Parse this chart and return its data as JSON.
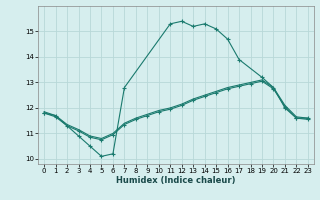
{
  "xlabel": "Humidex (Indice chaleur)",
  "bg_color": "#d6eeee",
  "line_color": "#1a7a6e",
  "grid_color": "#b8d8d8",
  "xlim": [
    -0.5,
    23.5
  ],
  "ylim": [
    9.8,
    16.0
  ],
  "yticks": [
    10,
    11,
    12,
    13,
    14,
    15
  ],
  "xticks": [
    0,
    1,
    2,
    3,
    4,
    5,
    6,
    7,
    8,
    9,
    10,
    11,
    12,
    13,
    14,
    15,
    16,
    17,
    18,
    19,
    20,
    21,
    22,
    23
  ],
  "peak_x": [
    0,
    1,
    3,
    4,
    5,
    6,
    7,
    11,
    12,
    13,
    14,
    15,
    16,
    17,
    19,
    20,
    21,
    22,
    23
  ],
  "peak_y": [
    11.8,
    11.7,
    10.9,
    10.5,
    10.1,
    10.2,
    12.8,
    15.3,
    15.4,
    15.2,
    15.3,
    15.1,
    14.7,
    13.9,
    13.2,
    12.8,
    12.0,
    11.6,
    11.6
  ],
  "line2_x": [
    0,
    1,
    2,
    3,
    4,
    5,
    6,
    7,
    8,
    9,
    10,
    11,
    12,
    13,
    14,
    15,
    16,
    17,
    18,
    19,
    20,
    21,
    22,
    23
  ],
  "line2_y": [
    11.8,
    11.65,
    11.3,
    11.1,
    10.85,
    10.75,
    10.95,
    11.35,
    11.55,
    11.7,
    11.85,
    11.95,
    12.1,
    12.3,
    12.45,
    12.6,
    12.75,
    12.85,
    12.95,
    13.05,
    12.75,
    12.05,
    11.6,
    11.55
  ],
  "line3_x": [
    0,
    1,
    2,
    3,
    4,
    5,
    6,
    7,
    8,
    9,
    10,
    11,
    12,
    13,
    14,
    15,
    16,
    17,
    18,
    19,
    20,
    21,
    22,
    23
  ],
  "line3_y": [
    11.85,
    11.7,
    11.35,
    11.15,
    10.9,
    10.8,
    11.0,
    11.4,
    11.6,
    11.75,
    11.9,
    12.0,
    12.15,
    12.35,
    12.5,
    12.65,
    12.8,
    12.9,
    13.0,
    13.1,
    12.8,
    12.1,
    11.65,
    11.6
  ]
}
